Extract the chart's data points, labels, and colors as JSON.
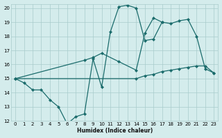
{
  "background_color": "#d4ecec",
  "grid_color": "#a8cccc",
  "line_color": "#1a6b6b",
  "xlabel": "Humidex (Indice chaleur)",
  "xlim": [
    -0.5,
    23.5
  ],
  "ylim": [
    12,
    20.3
  ],
  "yticks": [
    12,
    13,
    14,
    15,
    16,
    17,
    18,
    19,
    20
  ],
  "xticks": [
    0,
    1,
    2,
    3,
    4,
    5,
    6,
    7,
    8,
    9,
    10,
    11,
    12,
    13,
    14,
    15,
    16,
    17,
    18,
    19,
    20,
    21,
    22,
    23
  ],
  "series": [
    {
      "x": [
        0,
        1,
        2,
        3,
        4,
        5,
        6,
        7,
        8,
        9,
        10,
        11,
        12,
        13,
        14,
        15,
        16,
        17
      ],
      "y": [
        15.0,
        14.7,
        14.2,
        14.2,
        13.5,
        13.0,
        11.8,
        12.3,
        12.5,
        16.4,
        14.4,
        18.3,
        20.1,
        20.2,
        20.0,
        17.7,
        17.8,
        19.0
      ]
    },
    {
      "x": [
        0,
        8,
        9,
        10,
        12,
        14,
        15,
        16,
        17,
        18,
        19,
        20,
        21,
        22,
        23
      ],
      "y": [
        15.0,
        16.3,
        16.5,
        16.8,
        16.2,
        15.6,
        18.2,
        19.3,
        19.0,
        18.9,
        19.1,
        19.2,
        18.0,
        15.7,
        15.4
      ]
    },
    {
      "x": [
        0,
        14,
        15,
        16,
        17,
        18,
        19,
        20,
        21,
        22,
        23
      ],
      "y": [
        15.0,
        15.0,
        15.2,
        15.3,
        15.5,
        15.6,
        15.7,
        15.8,
        15.9,
        15.9,
        15.4
      ]
    }
  ]
}
